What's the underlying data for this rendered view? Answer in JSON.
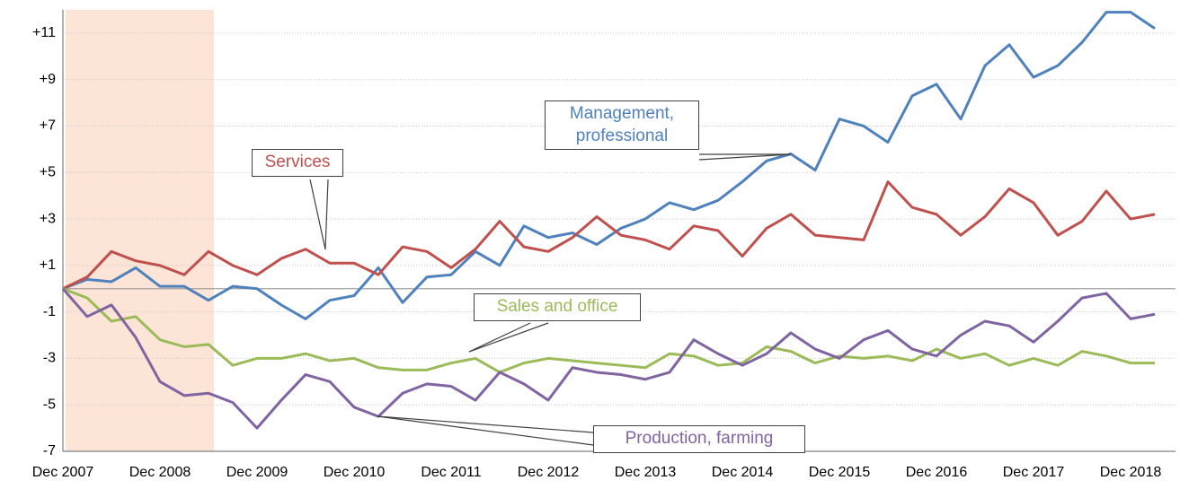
{
  "chart_data": {
    "type": "line",
    "categories": [
      "Dec 2007",
      null,
      null,
      null,
      "Dec 2008",
      null,
      null,
      null,
      "Dec 2009",
      null,
      null,
      null,
      "Dec 2010",
      null,
      null,
      null,
      "Dec 2011",
      null,
      null,
      null,
      "Dec 2012",
      null,
      null,
      null,
      "Dec 2013",
      null,
      null,
      null,
      "Dec 2014",
      null,
      null,
      null,
      "Dec 2015",
      null,
      null,
      null,
      "Dec 2016",
      null,
      null,
      null,
      "Dec 2017",
      null,
      null,
      null,
      "Dec 2018",
      null
    ],
    "series": [
      {
        "name": "Management, professional",
        "color": "#4f81bd",
        "values": [
          0,
          0.4,
          0.3,
          0.9,
          0.1,
          0.1,
          -0.5,
          0.1,
          0,
          -0.7,
          -1.3,
          -0.5,
          -0.3,
          0.9,
          -0.6,
          0.5,
          0.6,
          1.6,
          1.0,
          2.7,
          2.2,
          2.4,
          1.9,
          2.6,
          3.0,
          3.7,
          3.4,
          3.8,
          4.6,
          5.5,
          5.8,
          5.1,
          7.3,
          7.0,
          6.3,
          8.3,
          8.8,
          7.3,
          9.6,
          10.5,
          9.1,
          9.6,
          10.6,
          11.9,
          11.9,
          11.2
        ]
      },
      {
        "name": "Services",
        "color": "#c0504d",
        "values": [
          0,
          0.5,
          1.6,
          1.2,
          1.0,
          0.6,
          1.6,
          1.0,
          0.6,
          1.3,
          1.7,
          1.1,
          1.1,
          0.6,
          1.8,
          1.6,
          0.9,
          1.7,
          2.9,
          1.8,
          1.6,
          2.2,
          3.1,
          2.3,
          2.1,
          1.7,
          2.7,
          2.5,
          1.4,
          2.6,
          3.2,
          2.3,
          2.2,
          2.1,
          4.6,
          3.5,
          3.2,
          2.3,
          3.1,
          4.3,
          3.7,
          2.3,
          2.9,
          4.2,
          3.0,
          3.2
        ]
      },
      {
        "name": "Sales and office",
        "color": "#9bbb59",
        "values": [
          0,
          -0.4,
          -1.4,
          -1.2,
          -2.2,
          -2.5,
          -2.4,
          -3.3,
          -3.0,
          -3.0,
          -2.8,
          -3.1,
          -3.0,
          -3.4,
          -3.5,
          -3.5,
          -3.2,
          -3.0,
          -3.6,
          -3.2,
          -3.0,
          -3.1,
          -3.2,
          -3.3,
          -3.4,
          -2.8,
          -2.9,
          -3.3,
          -3.2,
          -2.5,
          -2.7,
          -3.2,
          -2.9,
          -3.0,
          -2.9,
          -3.1,
          -2.6,
          -3.0,
          -2.8,
          -3.3,
          -3.0,
          -3.3,
          -2.7,
          -2.9,
          -3.2,
          -3.2
        ]
      },
      {
        "name": "Production, farming",
        "color": "#8064a2",
        "values": [
          0,
          -1.2,
          -0.7,
          -2.1,
          -4.0,
          -4.6,
          -4.5,
          -4.9,
          -6.0,
          -4.8,
          -3.7,
          -4.0,
          -5.1,
          -5.5,
          -4.5,
          -4.1,
          -4.2,
          -4.8,
          -3.6,
          -4.1,
          -4.8,
          -3.4,
          -3.6,
          -3.7,
          -3.9,
          -3.6,
          -2.2,
          -2.8,
          -3.3,
          -2.8,
          -1.9,
          -2.6,
          -3.0,
          -2.2,
          -1.8,
          -2.6,
          -2.9,
          -2.0,
          -1.4,
          -1.6,
          -2.3,
          -1.4,
          -0.4,
          -0.2,
          -1.3,
          -1.1
        ]
      }
    ],
    "ylim": [
      -7,
      12
    ],
    "yticks": [
      -7,
      -5,
      -3,
      -1,
      {
        "value": 1,
        "label": "+1"
      },
      {
        "value": 3,
        "label": "+3"
      },
      {
        "value": 5,
        "label": "+5"
      },
      {
        "value": 7,
        "label": "+7"
      },
      {
        "value": 9,
        "label": "+9"
      },
      {
        "value": 11,
        "label": "+11"
      }
    ],
    "grid": true
  }
}
